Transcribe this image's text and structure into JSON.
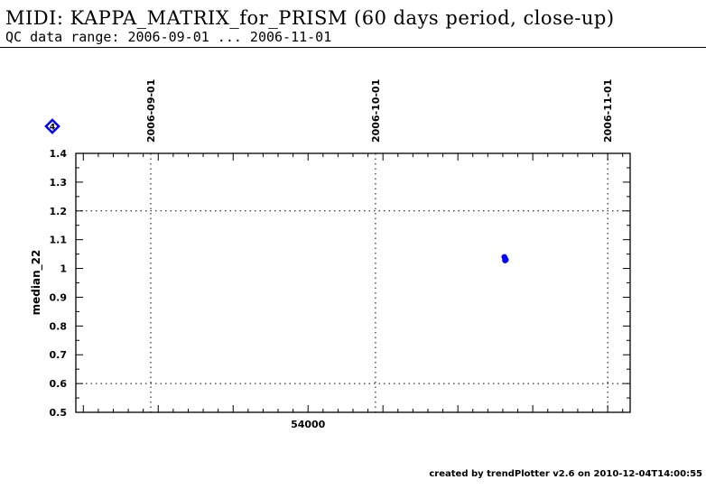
{
  "header": {
    "title": "MIDI: KAPPA_MATRIX_for_PRISM (60 days period, close-up)",
    "subtitle": "QC data range: 2006-09-01 ... 2006-11-01"
  },
  "footer": {
    "text": "created by trendPlotter v2.6 on 2010-12-04T14:00:55"
  },
  "legend": {
    "marker_label": "4",
    "marker_color": "#0000ff",
    "marker_icon": "diamond-icon"
  },
  "chart_data": {
    "type": "scatter",
    "title": "",
    "xlabel": "",
    "ylabel": "median_22",
    "xlim": [
      53969,
      54043
    ],
    "ylim": [
      0.5,
      1.4
    ],
    "x_major_ticks": [
      53970,
      53980,
      53990,
      54000,
      54010,
      54020,
      54030,
      54040
    ],
    "x_tick_labels": [
      {
        "value": 54000,
        "label": "54000"
      }
    ],
    "x_minor_step": 2,
    "y_ticks": [
      0.5,
      0.6,
      0.7,
      0.8,
      0.9,
      1,
      1.1,
      1.2,
      1.3,
      1.4
    ],
    "y_tick_labels": [
      "0.5",
      "0.6",
      "0.7",
      "0.8",
      "0.9",
      "1",
      "1.1",
      "1.2",
      "1.3",
      "1.4"
    ],
    "y_minor_step": 0.05,
    "y_grid_lines": [
      0.6,
      1.2
    ],
    "date_markers": [
      {
        "label": "2006-09-01",
        "x": 53979
      },
      {
        "label": "2006-10-01",
        "x": 54009
      },
      {
        "label": "2006-11-01",
        "x": 54040
      }
    ],
    "series": [
      {
        "color": "#0000ff",
        "points": [
          {
            "x": 54026.2,
            "y": 1.04
          },
          {
            "x": 54026.3,
            "y": 1.035
          },
          {
            "x": 54026.3,
            "y": 1.028
          },
          {
            "x": 54026.4,
            "y": 1.03
          }
        ]
      }
    ]
  }
}
